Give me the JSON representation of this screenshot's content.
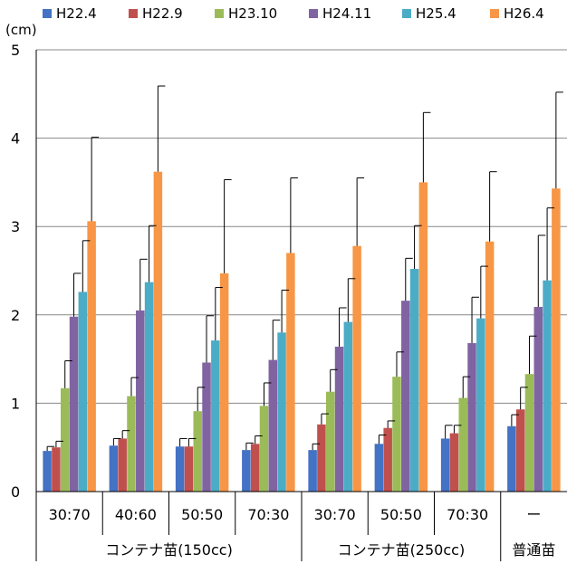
{
  "chart_data": {
    "type": "bar",
    "unit_label": "(cm)",
    "ylim": [
      0,
      5
    ],
    "y_ticks": [
      0,
      1,
      2,
      3,
      4,
      5
    ],
    "grid": true,
    "legend_position": "top",
    "error_bars": true,
    "categories": [
      "30:70",
      "40:60",
      "50:50",
      "70:30",
      "30:70",
      "50:50",
      "70:30",
      "ー"
    ],
    "groups": [
      {
        "label": "コンテナ苗(150cc)",
        "span": 4
      },
      {
        "label": "コンテナ苗(250cc)",
        "span": 3
      },
      {
        "label": "普通苗",
        "span": 1
      }
    ],
    "series": [
      {
        "name": "H22.4",
        "color": "#4472C4",
        "values": [
          0.46,
          0.52,
          0.51,
          0.47,
          0.47,
          0.54,
          0.6,
          0.74
        ],
        "errors": [
          0.05,
          0.08,
          0.09,
          0.08,
          0.07,
          0.1,
          0.15,
          0.13
        ]
      },
      {
        "name": "H22.9",
        "color": "#C0504D",
        "values": [
          0.5,
          0.6,
          0.51,
          0.54,
          0.76,
          0.72,
          0.66,
          0.93
        ],
        "errors": [
          0.07,
          0.09,
          0.09,
          0.09,
          0.12,
          0.08,
          0.09,
          0.25
        ]
      },
      {
        "name": "H23.10",
        "color": "#9BBB59",
        "values": [
          1.17,
          1.08,
          0.91,
          0.97,
          1.13,
          1.3,
          1.06,
          1.33
        ],
        "errors": [
          0.31,
          0.21,
          0.27,
          0.26,
          0.25,
          0.28,
          0.24,
          0.43
        ]
      },
      {
        "name": "H24.11",
        "color": "#8064A2",
        "values": [
          1.98,
          2.05,
          1.46,
          1.49,
          1.64,
          2.16,
          1.68,
          2.09
        ],
        "errors": [
          0.49,
          0.58,
          0.53,
          0.45,
          0.44,
          0.48,
          0.52,
          0.81
        ]
      },
      {
        "name": "H25.4",
        "color": "#4BACC6",
        "values": [
          2.26,
          2.37,
          1.71,
          1.8,
          1.92,
          2.52,
          1.96,
          2.39
        ],
        "errors": [
          0.58,
          0.64,
          0.6,
          0.48,
          0.49,
          0.49,
          0.59,
          0.82
        ]
      },
      {
        "name": "H26.4",
        "color": "#F79646",
        "values": [
          3.06,
          3.62,
          2.47,
          2.7,
          2.78,
          3.5,
          2.83,
          3.43
        ],
        "errors": [
          0.95,
          0.97,
          1.06,
          0.85,
          0.77,
          0.79,
          0.79,
          1.09
        ]
      }
    ]
  }
}
